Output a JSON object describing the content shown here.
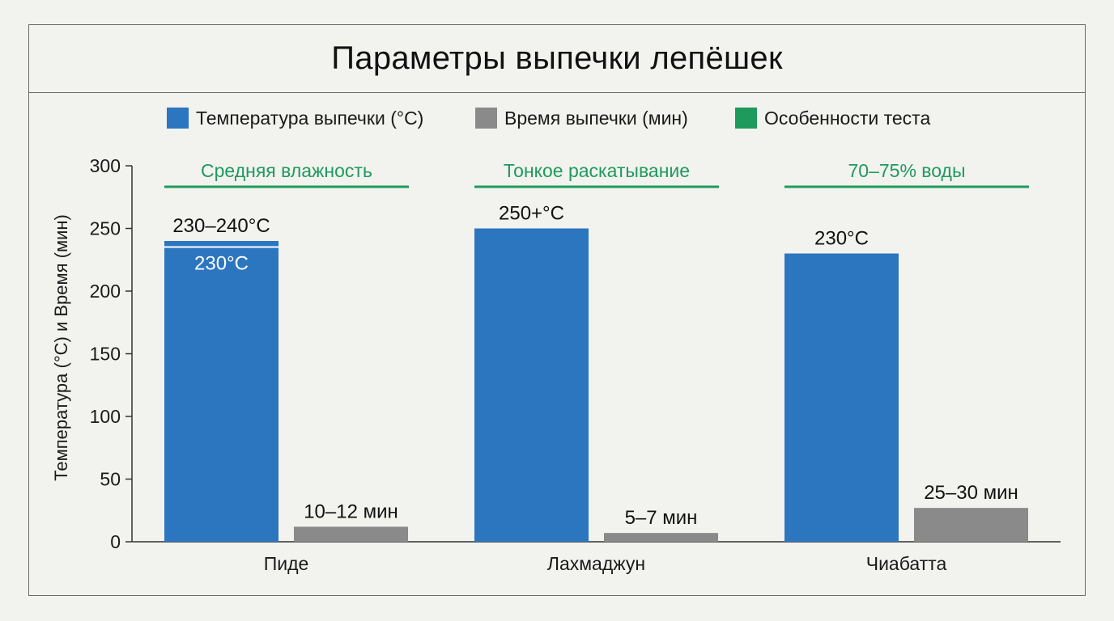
{
  "title": "Параметры выпечки лепёшек",
  "colors": {
    "temperature": "#2c76c0",
    "time": "#8a8a8a",
    "feature": "#1e9a5c",
    "axis": "#333333"
  },
  "chart_data": {
    "type": "bar",
    "title": "Параметры выпечки лепёшек",
    "ylabel": "Температура (°С) и Время (мин)",
    "xlabel": "",
    "ylim": [
      0,
      300
    ],
    "yticks": [
      0,
      50,
      100,
      150,
      200,
      250,
      300
    ],
    "categories": [
      "Пиде",
      "Лахмаджун",
      "Чиабатта"
    ],
    "legend": [
      "Температура выпечки (°С)",
      "Время выпечки (мин)",
      "Особенности теста"
    ],
    "legend_position": "top",
    "grid": false,
    "series": [
      {
        "name": "Температура выпечки (°С)",
        "values": [
          240,
          250,
          230
        ],
        "inner_marker": [
          230,
          null,
          null
        ],
        "labels": [
          "230–240°С",
          "250+°С",
          "230°С"
        ],
        "inner_labels": [
          "230°С",
          "",
          ""
        ]
      },
      {
        "name": "Время выпечки (мин)",
        "values": [
          12,
          7,
          27
        ],
        "labels": [
          "10–12 мин",
          "5–7 мин",
          "25–30 мин"
        ]
      }
    ],
    "features": [
      "Средняя влажность",
      "Тонкое раскатывание",
      "70–75% воды"
    ]
  }
}
